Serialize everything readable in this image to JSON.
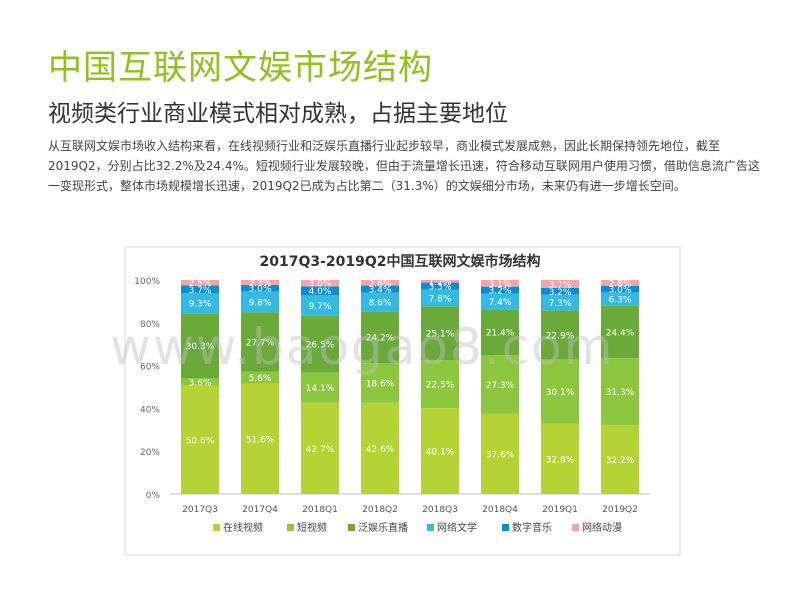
{
  "page": {
    "title": "中国互联网文娱市场结构",
    "subtitle": "视频类行业商业模式相对成熟，占据主要地位",
    "body": "从互联网文娱市场收入结构来看，在线视频行业和泛娱乐直播行业起步较早，商业模式发展成熟，因此长期保持领先地位，截至2019Q2，分别占比32.2%及24.4%。短视频行业发展较晚，但由于流量增长迅速，符合移动互联网用户使用习惯，借助信息流广告这一变现形式，整体市场规模增长迅速，2019Q2已成为占比第二（31.3%）的文娱细分市场，未来仍有进一步增长空间。",
    "watermark": "www.baogao8.com"
  },
  "chart_data": {
    "type": "bar",
    "stacked": true,
    "title": "2017Q3-2019Q2中国互联网文娱市场结构",
    "categories": [
      "2017Q3",
      "2017Q4",
      "2018Q1",
      "2018Q2",
      "2018Q3",
      "2018Q4",
      "2019Q1",
      "2019Q2"
    ],
    "ylim": [
      0,
      100
    ],
    "yticks": [
      "0%",
      "20%",
      "40%",
      "60%",
      "80%",
      "100%"
    ],
    "legend_position": "bottom",
    "series": [
      {
        "name": "在线视频",
        "color": "#b5d334",
        "values": [
          50.6,
          51.6,
          42.7,
          42.6,
          40.1,
          37.6,
          32.8,
          32.2
        ],
        "labels": [
          "50.6%",
          "51.6%",
          "42.7%",
          "42.6%",
          "40.1%",
          "37.6%",
          "32.8%",
          "32.2%"
        ]
      },
      {
        "name": "短视频",
        "color": "#8cc63f",
        "values": [
          3.6,
          5.6,
          14.1,
          18.6,
          22.5,
          27.3,
          30.1,
          31.3
        ],
        "labels": [
          "3.6%",
          "5.6%",
          "14.1%",
          "18.6%",
          "22.5%",
          "27.3%",
          "30.1%",
          "31.3%"
        ]
      },
      {
        "name": "泛娱乐直播",
        "color": "#6aaa3a",
        "values": [
          30.3,
          27.7,
          26.5,
          24.2,
          25.1,
          21.4,
          22.9,
          24.4
        ],
        "labels": [
          "30.3%",
          "27.7%",
          "26.5%",
          "24.2%",
          "25.1%",
          "21.4%",
          "22.9%",
          "24.4%"
        ]
      },
      {
        "name": "网络文学",
        "color": "#34b9e3",
        "values": [
          9.3,
          9.8,
          9.7,
          8.6,
          7.8,
          7.4,
          7.3,
          6.3
        ],
        "labels": [
          "9.3%",
          "9.8%",
          "9.7%",
          "8.6%",
          "7.8%",
          "7.4%",
          "7.3%",
          "6.3%"
        ]
      },
      {
        "name": "数字音乐",
        "color": "#0d8ccf",
        "values": [
          3.7,
          3.0,
          4.0,
          3.4,
          3.3,
          3.2,
          3.2,
          3.0
        ],
        "labels": [
          "3.7%",
          "3.0%",
          "4.0%",
          "3.4%",
          "3.3%",
          "3.2%",
          "3.2%",
          "3.0%"
        ]
      },
      {
        "name": "网络动漫",
        "color": "#f4a3a8",
        "values": [
          2.5,
          2.3,
          3.0,
          2.6,
          1.2,
          3.1,
          3.7,
          2.8
        ],
        "labels": [
          "2.5%",
          "2.3%",
          "3.0%",
          "2.6%",
          "1.2%",
          "3.1%",
          "3.7%",
          "2.8%"
        ]
      }
    ]
  }
}
